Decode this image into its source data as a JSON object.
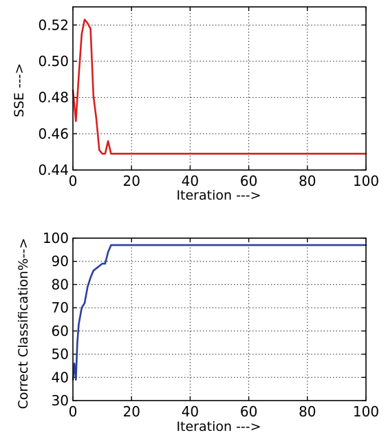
{
  "chart_data": [
    {
      "type": "line",
      "title": "",
      "xlabel": "Iteration --->",
      "ylabel": "SSE --->",
      "xlim": [
        0,
        100
      ],
      "ylim": [
        0.44,
        0.53
      ],
      "xticks": [
        "0",
        "20",
        "40",
        "60",
        "80",
        "100"
      ],
      "yticks": [
        "0.44",
        "0.46",
        "0.48",
        "0.50",
        "0.52"
      ],
      "grid": true,
      "series": [
        {
          "color": "#d62020",
          "x": [
            0,
            1,
            2,
            3,
            4,
            5,
            6,
            7,
            8,
            9,
            10,
            11,
            12,
            13,
            14,
            20,
            40,
            60,
            80,
            100
          ],
          "y": [
            0.484,
            0.467,
            0.492,
            0.515,
            0.523,
            0.521,
            0.518,
            0.481,
            0.468,
            0.451,
            0.449,
            0.449,
            0.456,
            0.449,
            0.449,
            0.449,
            0.449,
            0.449,
            0.449,
            0.449
          ]
        }
      ]
    },
    {
      "type": "line",
      "title": "",
      "xlabel": "Iteration --->",
      "ylabel": "Correct Classification%-->",
      "xlim": [
        0,
        100
      ],
      "ylim": [
        30,
        100
      ],
      "xticks": [
        "0",
        "20",
        "40",
        "60",
        "80",
        "100"
      ],
      "yticks": [
        "30",
        "40",
        "50",
        "60",
        "70",
        "80",
        "90",
        "100"
      ],
      "grid": true,
      "series": [
        {
          "color": "#2b3f9e",
          "x": [
            0,
            0.5,
            1,
            1.5,
            2,
            3,
            4,
            5,
            6,
            7,
            8,
            9,
            10,
            11,
            12,
            13,
            14,
            20,
            40,
            60,
            80,
            100
          ],
          "y": [
            39,
            46,
            39,
            55,
            63,
            70,
            72,
            79,
            83,
            86,
            87,
            88,
            89,
            89,
            94,
            97,
            97,
            97,
            97,
            97,
            97,
            97
          ]
        }
      ]
    }
  ]
}
